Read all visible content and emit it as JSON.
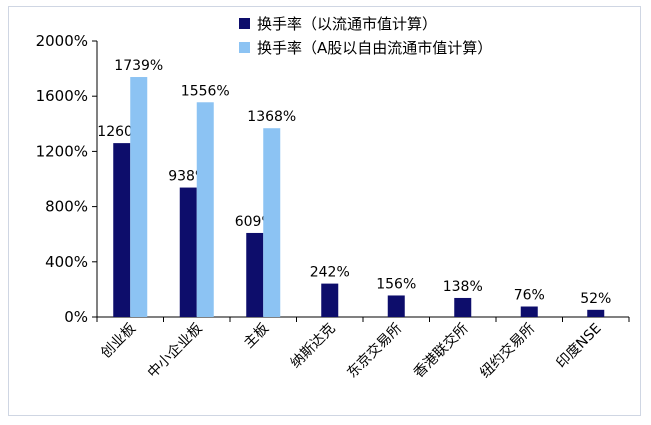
{
  "chart_data": {
    "type": "bar",
    "categories": [
      "创业板",
      "中小企业板",
      "主板",
      "纳斯达克",
      "东京交易所",
      "香港联交所",
      "纽约交易所",
      "印度NSE"
    ],
    "series": [
      {
        "name": "换手率（以流通市值计算）",
        "color": "#0d0d6b",
        "values": [
          1260,
          938,
          609,
          242,
          156,
          138,
          76,
          52
        ],
        "labels": [
          "1260%",
          "938%",
          "609%",
          "242%",
          "156%",
          "138%",
          "76%",
          "52%"
        ]
      },
      {
        "name": "换手率（A股以自由流通市值计算）",
        "color": "#8cc3f3",
        "values": [
          1739,
          1556,
          1368,
          null,
          null,
          null,
          null,
          null
        ],
        "labels": [
          "1739%",
          "1556%",
          "1368%",
          null,
          null,
          null,
          null,
          null
        ]
      }
    ],
    "yticks": [
      "0%",
      "400%",
      "800%",
      "1200%",
      "1600%",
      "2000%"
    ],
    "ylim": [
      0,
      2000
    ],
    "ytick_step": 400,
    "legend_position": "top-right",
    "grid": false
  }
}
